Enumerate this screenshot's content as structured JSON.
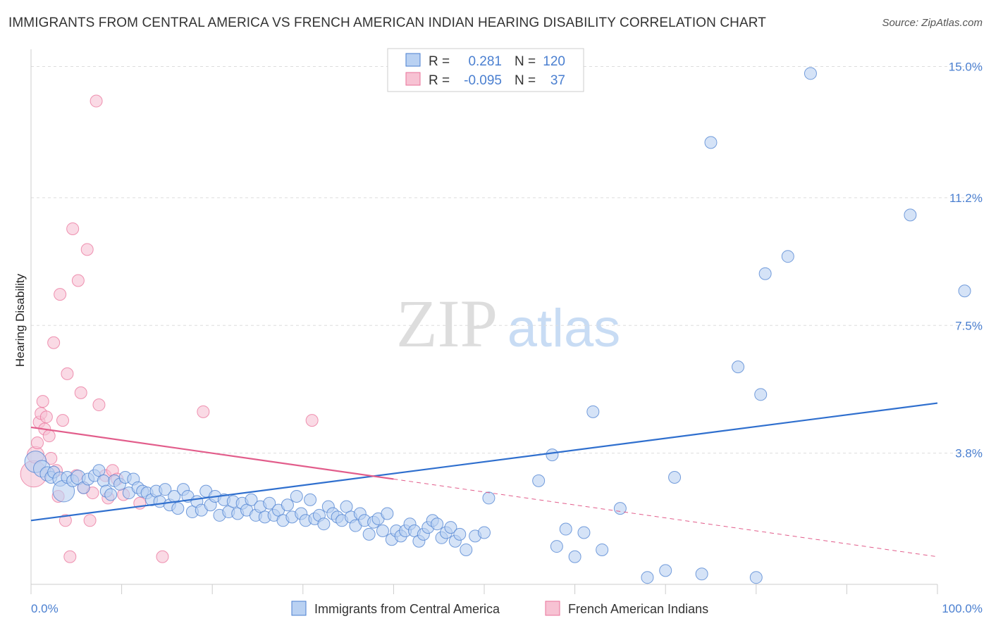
{
  "title": "IMMIGRANTS FROM CENTRAL AMERICA VS FRENCH AMERICAN INDIAN HEARING DISABILITY CORRELATION CHART",
  "source": "Source: ZipAtlas.com",
  "watermark": {
    "zip": "ZIP",
    "atlas": "atlas"
  },
  "colors": {
    "blue": "#4a7fd0",
    "blue_fill": "#b9d1f2",
    "blue_line": "#2f6fce",
    "pink": "#e9729a",
    "pink_fill": "#f7c2d3",
    "pink_line": "#e25d8b",
    "grid": "#dddddd"
  },
  "legend": {
    "rows": [
      {
        "r_label": "R =",
        "r_value": "0.281",
        "n_label": "N =",
        "n_value": "120"
      },
      {
        "r_label": "R =",
        "r_value": "-0.095",
        "n_label": "N =",
        "n_value": "37"
      }
    ]
  },
  "chart_data": {
    "type": "scatter",
    "ylabel": "Hearing Disability",
    "xlim": [
      0,
      100
    ],
    "ylim": [
      0,
      15.5
    ],
    "y_ticks": [
      3.8,
      7.5,
      11.2,
      15.0
    ],
    "y_tick_labels": [
      "3.8%",
      "7.5%",
      "11.2%",
      "15.0%"
    ],
    "x_tick_labels": [
      "0.0%",
      "100.0%"
    ],
    "grid": "horizontal dashed",
    "legend_placement": "top-center",
    "series": [
      {
        "name": "Immigrants from Central America",
        "color": "#4a7fd0",
        "trend": {
          "x": [
            0,
            100
          ],
          "y": [
            1.85,
            5.25
          ]
        },
        "points": [
          [
            0.5,
            3.55,
            1.8
          ],
          [
            1.2,
            3.35,
            1.4
          ],
          [
            1.8,
            3.2,
            1.2
          ],
          [
            2.2,
            3.1,
            1.0
          ],
          [
            2.5,
            3.25,
            1.0
          ],
          [
            3.2,
            3.05,
            1.2
          ],
          [
            3.6,
            2.7,
            1.8
          ],
          [
            4.0,
            3.1,
            1.0
          ],
          [
            4.6,
            3.0,
            1.0
          ],
          [
            5.2,
            3.1,
            1.2
          ],
          [
            5.8,
            2.8,
            1.0
          ],
          [
            6.3,
            3.05,
            1.0
          ],
          [
            7.0,
            3.15,
            1.0
          ],
          [
            7.5,
            3.3,
            1.0
          ],
          [
            8.0,
            3.0,
            1.0
          ],
          [
            8.3,
            2.7,
            1.0
          ],
          [
            8.8,
            2.6,
            1.0
          ],
          [
            9.2,
            3.0,
            1.0
          ],
          [
            9.8,
            2.9,
            1.0
          ],
          [
            10.4,
            3.1,
            1.0
          ],
          [
            10.8,
            2.65,
            1.0
          ],
          [
            11.3,
            3.05,
            1.0
          ],
          [
            11.8,
            2.8,
            1.0
          ],
          [
            12.3,
            2.7,
            1.0
          ],
          [
            12.8,
            2.65,
            1.0
          ],
          [
            13.3,
            2.45,
            1.0
          ],
          [
            13.8,
            2.7,
            1.0
          ],
          [
            14.2,
            2.4,
            1.0
          ],
          [
            14.8,
            2.75,
            1.0
          ],
          [
            15.3,
            2.3,
            1.0
          ],
          [
            15.8,
            2.55,
            1.0
          ],
          [
            16.2,
            2.2,
            1.0
          ],
          [
            16.8,
            2.75,
            1.0
          ],
          [
            17.3,
            2.55,
            1.0
          ],
          [
            17.8,
            2.1,
            1.0
          ],
          [
            18.3,
            2.4,
            1.0
          ],
          [
            18.8,
            2.15,
            1.0
          ],
          [
            19.3,
            2.7,
            1.0
          ],
          [
            19.8,
            2.3,
            1.0
          ],
          [
            20.3,
            2.55,
            1.0
          ],
          [
            20.8,
            2.0,
            1.0
          ],
          [
            21.3,
            2.45,
            1.0
          ],
          [
            21.8,
            2.1,
            1.0
          ],
          [
            22.3,
            2.4,
            1.0
          ],
          [
            22.8,
            2.05,
            1.0
          ],
          [
            23.3,
            2.35,
            1.0
          ],
          [
            23.8,
            2.15,
            1.0
          ],
          [
            24.3,
            2.45,
            1.0
          ],
          [
            24.8,
            2.0,
            1.0
          ],
          [
            25.3,
            2.25,
            1.0
          ],
          [
            25.8,
            1.95,
            1.0
          ],
          [
            26.3,
            2.35,
            1.0
          ],
          [
            26.8,
            2.0,
            1.0
          ],
          [
            27.3,
            2.15,
            1.0
          ],
          [
            27.8,
            1.85,
            1.0
          ],
          [
            28.3,
            2.3,
            1.0
          ],
          [
            28.8,
            1.95,
            1.0
          ],
          [
            29.3,
            2.55,
            1.0
          ],
          [
            29.8,
            2.05,
            1.0
          ],
          [
            30.3,
            1.85,
            1.0
          ],
          [
            30.8,
            2.45,
            1.0
          ],
          [
            31.3,
            1.9,
            1.0
          ],
          [
            31.8,
            2.0,
            1.0
          ],
          [
            32.3,
            1.75,
            1.0
          ],
          [
            32.8,
            2.25,
            1.0
          ],
          [
            33.3,
            2.05,
            1.0
          ],
          [
            33.8,
            1.95,
            1.0
          ],
          [
            34.3,
            1.85,
            1.0
          ],
          [
            34.8,
            2.25,
            1.0
          ],
          [
            35.3,
            1.95,
            1.0
          ],
          [
            35.8,
            1.7,
            1.0
          ],
          [
            36.3,
            2.05,
            1.0
          ],
          [
            36.8,
            1.85,
            1.0
          ],
          [
            37.3,
            1.45,
            1.0
          ],
          [
            37.8,
            1.8,
            1.0
          ],
          [
            38.3,
            1.9,
            1.0
          ],
          [
            38.8,
            1.55,
            1.0
          ],
          [
            39.3,
            2.05,
            1.0
          ],
          [
            39.8,
            1.3,
            1.0
          ],
          [
            40.3,
            1.55,
            1.0
          ],
          [
            40.8,
            1.4,
            1.0
          ],
          [
            41.3,
            1.55,
            1.0
          ],
          [
            41.8,
            1.75,
            1.0
          ],
          [
            42.3,
            1.55,
            1.0
          ],
          [
            42.8,
            1.25,
            1.0
          ],
          [
            43.3,
            1.45,
            1.0
          ],
          [
            43.8,
            1.65,
            1.0
          ],
          [
            44.3,
            1.85,
            1.0
          ],
          [
            44.8,
            1.75,
            1.0
          ],
          [
            45.3,
            1.35,
            1.0
          ],
          [
            45.8,
            1.5,
            1.0
          ],
          [
            46.3,
            1.65,
            1.0
          ],
          [
            46.8,
            1.25,
            1.0
          ],
          [
            47.3,
            1.45,
            1.0
          ],
          [
            48.0,
            1.0,
            1.0
          ],
          [
            49.0,
            1.4,
            1.0
          ],
          [
            50.0,
            1.5,
            1.0
          ],
          [
            50.5,
            2.5,
            1.0
          ],
          [
            56.0,
            3.0,
            1.0
          ],
          [
            58.0,
            1.1,
            1.0
          ],
          [
            59.0,
            1.6,
            1.0
          ],
          [
            60.0,
            0.8,
            1.0
          ],
          [
            61.0,
            1.5,
            1.0
          ],
          [
            63.0,
            1.0,
            1.0
          ],
          [
            65.0,
            2.2,
            1.0
          ],
          [
            68.0,
            0.2,
            1.0
          ],
          [
            70.0,
            0.4,
            1.0
          ],
          [
            71.0,
            3.1,
            1.0
          ],
          [
            74.0,
            0.3,
            1.0
          ],
          [
            80.0,
            0.2,
            1.0
          ],
          [
            57.5,
            3.75,
            1.0
          ],
          [
            62.0,
            5.0,
            1.0
          ],
          [
            75.0,
            12.8,
            1.0
          ],
          [
            78.0,
            6.3,
            1.0
          ],
          [
            80.5,
            5.5,
            1.0
          ],
          [
            81.0,
            9.0,
            1.0
          ],
          [
            83.5,
            9.5,
            1.0
          ],
          [
            86.0,
            14.8,
            1.0
          ],
          [
            97.0,
            10.7,
            1.0
          ],
          [
            103.0,
            8.5,
            1.0
          ]
        ]
      },
      {
        "name": "French American Indians",
        "color": "#e9729a",
        "trend": {
          "x": [
            0,
            100
          ],
          "y": [
            4.55,
            0.8
          ]
        },
        "points": [
          [
            0.3,
            3.2,
            2.2
          ],
          [
            0.5,
            3.75,
            1.4
          ],
          [
            0.7,
            4.1,
            1.0
          ],
          [
            0.9,
            4.7,
            1.0
          ],
          [
            1.1,
            4.95,
            1.0
          ],
          [
            1.3,
            5.3,
            1.0
          ],
          [
            1.5,
            4.5,
            1.0
          ],
          [
            1.7,
            4.85,
            1.0
          ],
          [
            2.0,
            4.3,
            1.0
          ],
          [
            2.2,
            3.65,
            1.0
          ],
          [
            2.5,
            7.0,
            1.0
          ],
          [
            2.8,
            3.3,
            1.0
          ],
          [
            3.0,
            2.55,
            1.0
          ],
          [
            3.2,
            8.4,
            1.0
          ],
          [
            3.5,
            4.75,
            1.0
          ],
          [
            3.8,
            1.85,
            1.0
          ],
          [
            4.0,
            6.1,
            1.0
          ],
          [
            4.3,
            0.8,
            1.0
          ],
          [
            4.6,
            10.3,
            1.0
          ],
          [
            5.0,
            3.15,
            1.0
          ],
          [
            5.2,
            8.8,
            1.0
          ],
          [
            5.5,
            5.55,
            1.0
          ],
          [
            5.8,
            2.8,
            1.0
          ],
          [
            6.2,
            9.7,
            1.0
          ],
          [
            6.5,
            1.85,
            1.0
          ],
          [
            6.8,
            2.65,
            1.0
          ],
          [
            7.2,
            14.0,
            1.0
          ],
          [
            7.5,
            5.2,
            1.0
          ],
          [
            8.2,
            3.15,
            1.0
          ],
          [
            8.5,
            2.5,
            1.0
          ],
          [
            9.0,
            3.3,
            1.0
          ],
          [
            9.5,
            3.05,
            1.0
          ],
          [
            10.2,
            2.6,
            1.0
          ],
          [
            12.0,
            2.35,
            1.0
          ],
          [
            14.5,
            0.8,
            1.0
          ],
          [
            19.0,
            5.0,
            1.0
          ],
          [
            31.0,
            4.75,
            1.0
          ]
        ]
      }
    ]
  },
  "bottom_legend": [
    {
      "label": "Immigrants from Central America"
    },
    {
      "label": "French American Indians"
    }
  ]
}
